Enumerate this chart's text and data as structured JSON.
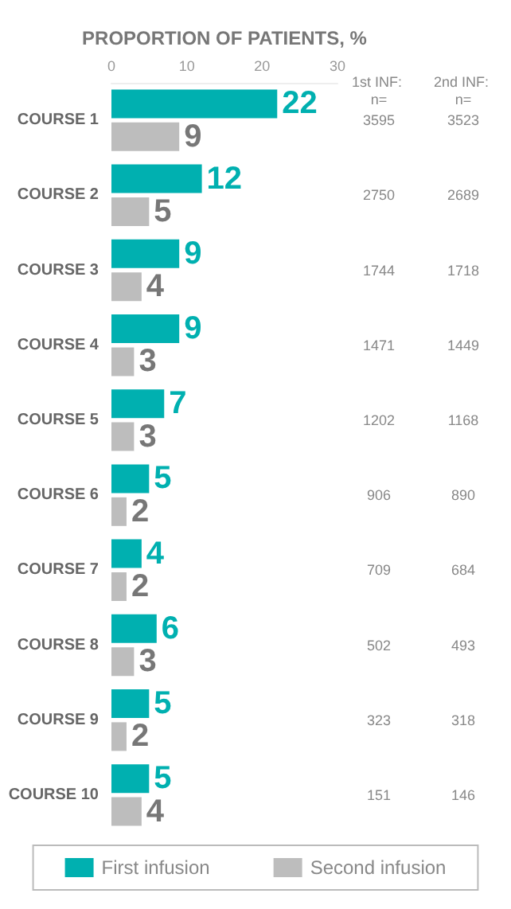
{
  "chart_data": {
    "type": "bar",
    "orientation": "horizontal",
    "xlabel": "PROPORTION OF PATIENTS, %",
    "categories": [
      "COURSE 1",
      "COURSE 2",
      "COURSE 3",
      "COURSE 4",
      "COURSE 5",
      "COURSE 6",
      "COURSE 7",
      "COURSE 8",
      "COURSE 9",
      "COURSE 10"
    ],
    "series": [
      {
        "name": "First infusion",
        "color": "#00b0b0",
        "values": [
          22,
          12,
          9,
          9,
          7,
          5,
          4,
          6,
          5,
          5
        ]
      },
      {
        "name": "Second infusion",
        "color": "#bdbdbd",
        "values": [
          9,
          5,
          4,
          3,
          3,
          2,
          2,
          3,
          2,
          4
        ]
      }
    ],
    "xlim": [
      0,
      30
    ],
    "xticks": [
      0,
      10,
      20,
      30
    ],
    "grid": false,
    "legend": "bottom",
    "data_labels": true,
    "annotations": [
      "1st INF: n=",
      "2nd INF: n=",
      "3595",
      "3523",
      "2750",
      "2689",
      "1744",
      "1718",
      "1471",
      "1449",
      "1202",
      "1168",
      "906",
      "890",
      "709",
      "684",
      "502",
      "493",
      "323",
      "318",
      "151",
      "146"
    ]
  }
}
